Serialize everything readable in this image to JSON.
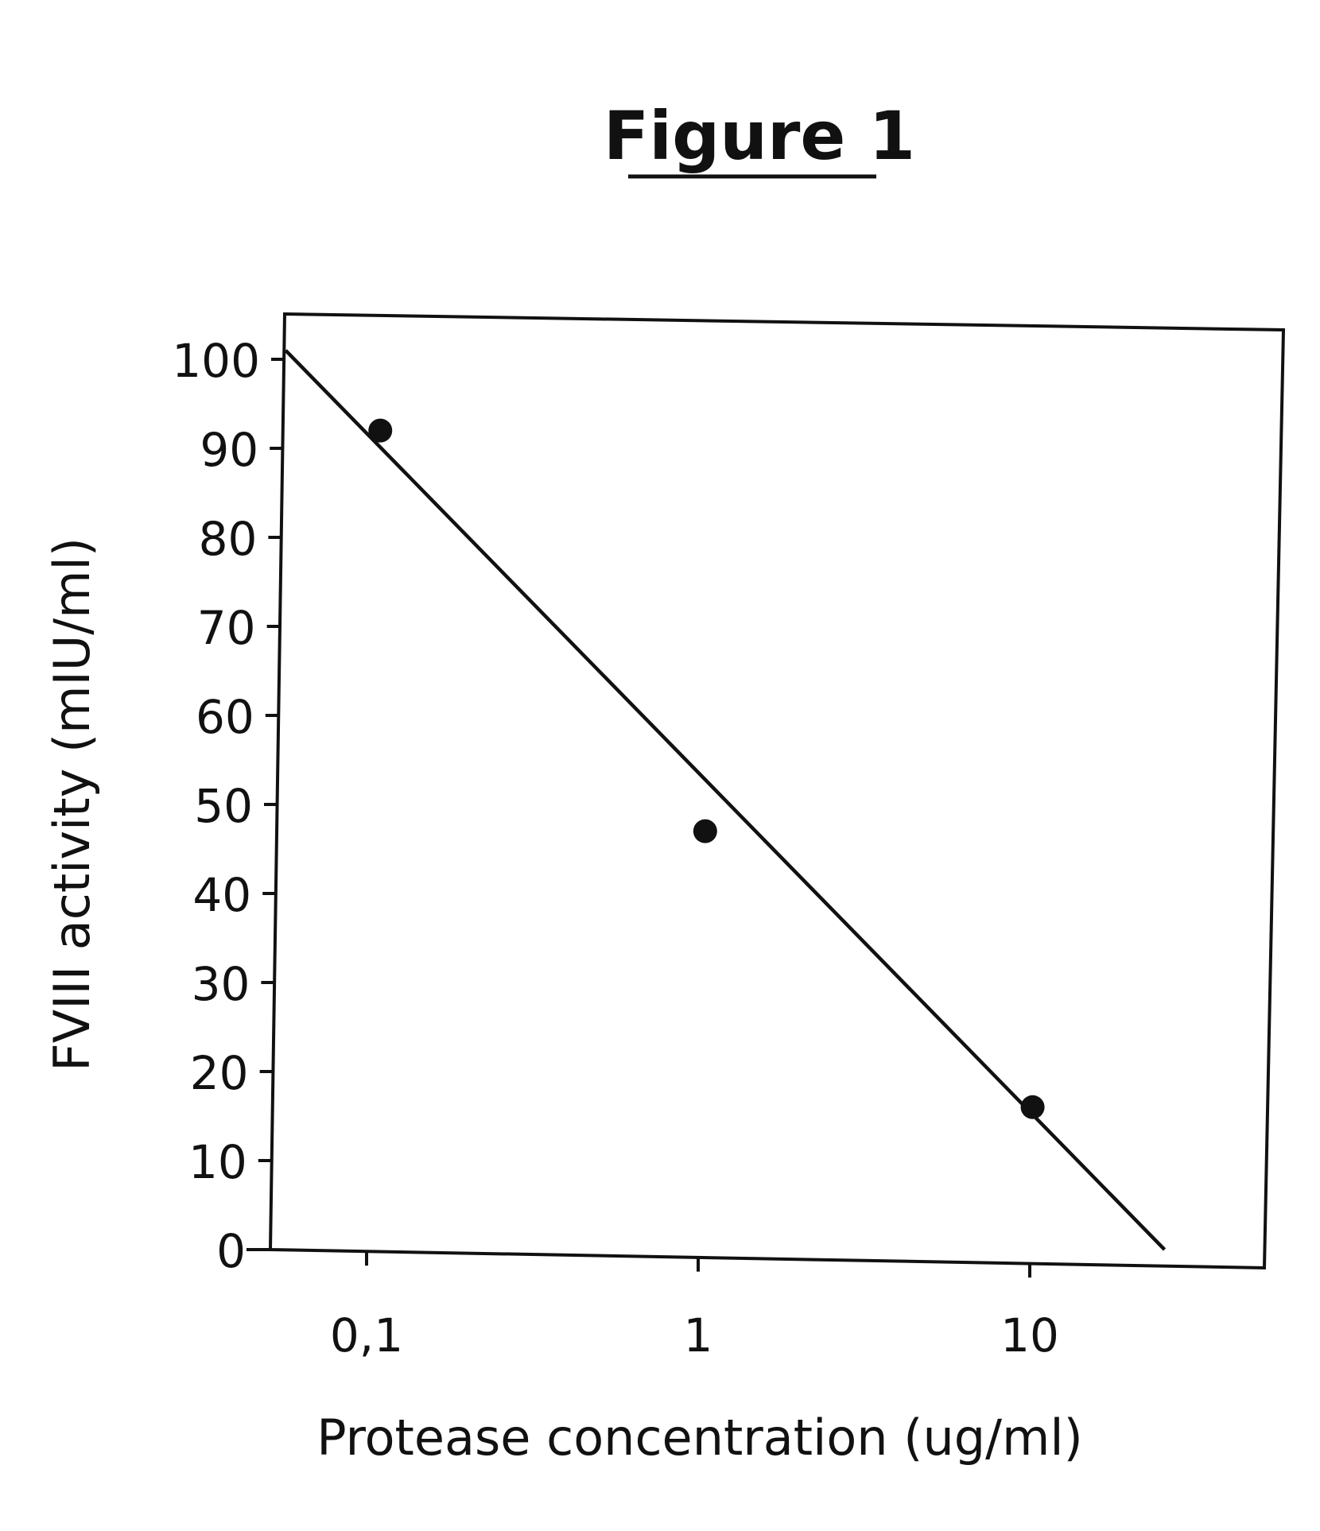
{
  "chart_data": {
    "type": "scatter",
    "title": "Figure 1",
    "xlabel": "Protease concentration (ug/ml)",
    "ylabel": "FVIII activity (mIU/ml)",
    "x_scale": "log",
    "xlim": [
      0.055,
      30
    ],
    "ylim": [
      0,
      100
    ],
    "x_ticks": [
      0.1,
      1,
      10
    ],
    "x_tick_labels": [
      "0,1",
      "1",
      "10"
    ],
    "y_ticks": [
      0,
      10,
      20,
      30,
      40,
      50,
      60,
      70,
      80,
      90,
      100
    ],
    "y_tick_labels": [
      "0",
      "10",
      "20",
      "30",
      "40",
      "50",
      "60",
      "70",
      "80",
      "90",
      "100"
    ],
    "grid": false,
    "legend": "none",
    "series": [
      {
        "type": "scatter",
        "x": [
          0.11,
          1.05,
          10.2
        ],
        "y": [
          92,
          47,
          16
        ]
      },
      {
        "type": "line",
        "x": [
          0.057,
          25.5
        ],
        "y": [
          101,
          0
        ]
      }
    ],
    "colors": {
      "ink": "#111111",
      "background": "#ffffff"
    }
  }
}
